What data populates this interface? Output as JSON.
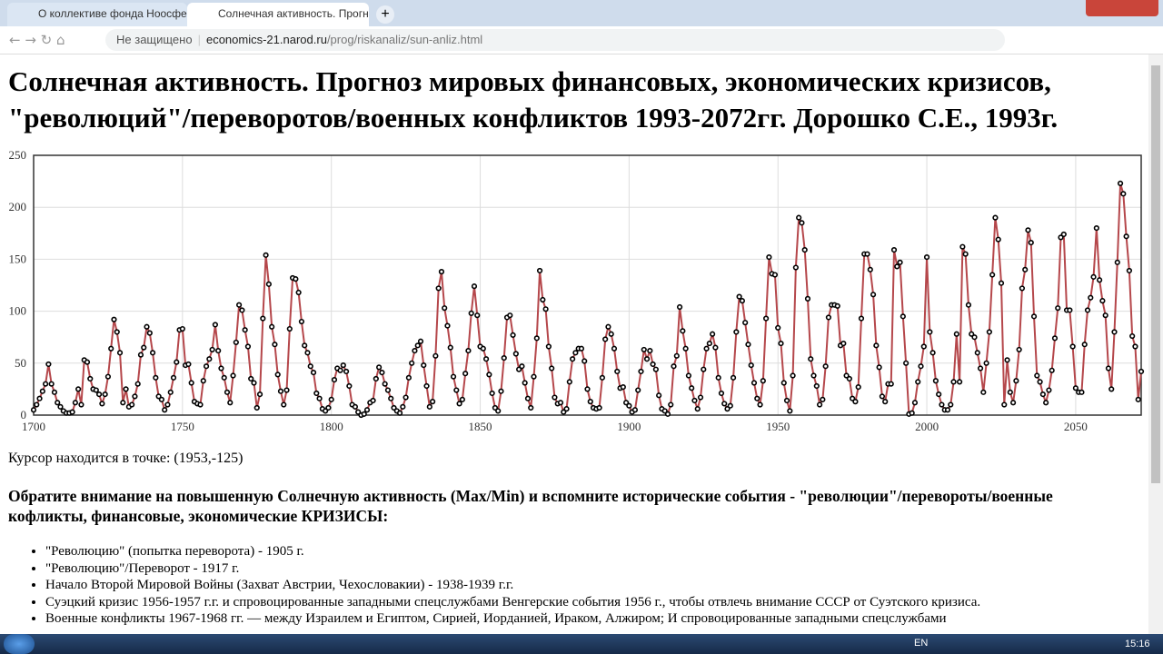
{
  "browser": {
    "tabs": [
      "О коллективе фонда Ноосфера",
      "Солнечная активность. Прогноз"
    ],
    "security": "Не защищено",
    "url_host": "economics-21.narod.ru",
    "url_path": "/prog/riskanaliz/sun-anliz.html"
  },
  "heading": [
    "Солнечная активность. Прогноз мировых финансовых, экономических кризисов,",
    "\"революций\"/переворотов/военных конфликтов 1993-2072гг. Дорошко С.Е., 1993г."
  ],
  "chart_data": {
    "type": "line",
    "color": "#b5474b",
    "grid": true,
    "xlim": [
      1700,
      2072
    ],
    "ylim": [
      0,
      250
    ],
    "xticks": [
      1700,
      1750,
      1800,
      1850,
      1900,
      1950,
      2000,
      2050
    ],
    "yticks": [
      0,
      50,
      100,
      150,
      200,
      250
    ],
    "x": [
      1700,
      1701,
      1702,
      1703,
      1704,
      1705,
      1706,
      1707,
      1708,
      1709,
      1710,
      1711,
      1712,
      1713,
      1714,
      1715,
      1716,
      1717,
      1718,
      1719,
      1720,
      1721,
      1722,
      1723,
      1724,
      1725,
      1726,
      1727,
      1728,
      1729,
      1730,
      1731,
      1732,
      1733,
      1734,
      1735,
      1736,
      1737,
      1738,
      1739,
      1740,
      1741,
      1742,
      1743,
      1744,
      1745,
      1746,
      1747,
      1748,
      1749,
      1750,
      1751,
      1752,
      1753,
      1754,
      1755,
      1756,
      1757,
      1758,
      1759,
      1760,
      1761,
      1762,
      1763,
      1764,
      1765,
      1766,
      1767,
      1768,
      1769,
      1770,
      1771,
      1772,
      1773,
      1774,
      1775,
      1776,
      1777,
      1778,
      1779,
      1780,
      1781,
      1782,
      1783,
      1784,
      1785,
      1786,
      1787,
      1788,
      1789,
      1790,
      1791,
      1792,
      1793,
      1794,
      1795,
      1796,
      1797,
      1798,
      1799,
      1800,
      1801,
      1802,
      1803,
      1804,
      1805,
      1806,
      1807,
      1808,
      1809,
      1810,
      1811,
      1812,
      1813,
      1814,
      1815,
      1816,
      1817,
      1818,
      1819,
      1820,
      1821,
      1822,
      1823,
      1824,
      1825,
      1826,
      1827,
      1828,
      1829,
      1830,
      1831,
      1832,
      1833,
      1834,
      1835,
      1836,
      1837,
      1838,
      1839,
      1840,
      1841,
      1842,
      1843,
      1844,
      1845,
      1846,
      1847,
      1848,
      1849,
      1850,
      1851,
      1852,
      1853,
      1854,
      1855,
      1856,
      1857,
      1858,
      1859,
      1860,
      1861,
      1862,
      1863,
      1864,
      1865,
      1866,
      1867,
      1868,
      1869,
      1870,
      1871,
      1872,
      1873,
      1874,
      1875,
      1876,
      1877,
      1878,
      1879,
      1880,
      1881,
      1882,
      1883,
      1884,
      1885,
      1886,
      1887,
      1888,
      1889,
      1890,
      1891,
      1892,
      1893,
      1894,
      1895,
      1896,
      1897,
      1898,
      1899,
      1900,
      1901,
      1902,
      1903,
      1904,
      1905,
      1906,
      1907,
      1908,
      1909,
      1910,
      1911,
      1912,
      1913,
      1914,
      1915,
      1916,
      1917,
      1918,
      1919,
      1920,
      1921,
      1922,
      1923,
      1924,
      1925,
      1926,
      1927,
      1928,
      1929,
      1930,
      1931,
      1932,
      1933,
      1934,
      1935,
      1936,
      1937,
      1938,
      1939,
      1940,
      1941,
      1942,
      1943,
      1944,
      1945,
      1946,
      1947,
      1948,
      1949,
      1950,
      1951,
      1952,
      1953,
      1954,
      1955,
      1956,
      1957,
      1958,
      1959,
      1960,
      1961,
      1962,
      1963,
      1964,
      1965,
      1966,
      1967,
      1968,
      1969,
      1970,
      1971,
      1972,
      1973,
      1974,
      1975,
      1976,
      1977,
      1978,
      1979,
      1980,
      1981,
      1982,
      1983,
      1984,
      1985,
      1986,
      1987,
      1988,
      1989,
      1990,
      1991,
      1992,
      1993,
      1994,
      1995,
      1996,
      1997,
      1998,
      1999,
      2000,
      2001,
      2002,
      2003,
      2004,
      2005,
      2006,
      2007,
      2008,
      2009,
      2010,
      2011,
      2012,
      2013,
      2014,
      2015,
      2016,
      2017,
      2018,
      2019,
      2020,
      2021,
      2022,
      2023,
      2024,
      2025,
      2026,
      2027,
      2028,
      2029,
      2030,
      2031,
      2032,
      2033,
      2034,
      2035,
      2036,
      2037,
      2038,
      2039,
      2040,
      2041,
      2042,
      2043,
      2044,
      2045,
      2046,
      2047,
      2048,
      2049,
      2050,
      2051,
      2052,
      2053,
      2054,
      2055,
      2056,
      2057,
      2058,
      2059,
      2060,
      2061,
      2062,
      2063,
      2064,
      2065,
      2066,
      2067,
      2068,
      2069,
      2070,
      2071,
      2072
    ],
    "values": [
      5,
      10,
      16,
      23,
      30,
      49,
      30,
      22,
      12,
      8,
      4,
      2,
      2,
      3,
      12,
      25,
      10,
      53,
      51,
      35,
      25,
      24,
      20,
      11,
      20,
      37,
      64,
      92,
      80,
      60,
      12,
      25,
      8,
      10,
      18,
      30,
      58,
      65,
      85,
      79,
      60,
      36,
      18,
      15,
      5,
      10,
      22,
      36,
      51,
      82,
      83,
      48,
      49,
      31,
      13,
      11,
      10,
      33,
      47,
      54,
      63,
      87,
      62,
      45,
      36,
      22,
      12,
      38,
      70,
      106,
      101,
      82,
      66,
      35,
      31,
      7,
      20,
      93,
      154,
      126,
      85,
      68,
      39,
      23,
      10,
      24,
      83,
      132,
      131,
      118,
      90,
      67,
      60,
      47,
      41,
      21,
      16,
      6,
      4,
      7,
      15,
      34,
      45,
      43,
      48,
      42,
      28,
      10,
      8,
      3,
      0,
      1,
      5,
      12,
      14,
      35,
      46,
      41,
      30,
      24,
      16,
      7,
      4,
      2,
      8,
      17,
      36,
      50,
      62,
      67,
      71,
      48,
      28,
      8,
      13,
      57,
      122,
      138,
      103,
      86,
      65,
      37,
      24,
      11,
      15,
      40,
      62,
      98,
      124,
      96,
      66,
      64,
      54,
      39,
      21,
      7,
      4,
      23,
      55,
      94,
      96,
      77,
      59,
      44,
      47,
      31,
      16,
      7,
      37,
      74,
      139,
      111,
      102,
      66,
      45,
      17,
      11,
      12,
      3,
      6,
      32,
      54,
      60,
      64,
      64,
      52,
      25,
      13,
      7,
      6,
      7,
      36,
      73,
      85,
      78,
      64,
      42,
      26,
      27,
      12,
      9,
      3,
      5,
      24,
      42,
      63,
      54,
      62,
      49,
      44,
      19,
      6,
      4,
      1,
      10,
      47,
      57,
      104,
      81,
      64,
      38,
      26,
      14,
      6,
      17,
      44,
      64,
      69,
      78,
      65,
      36,
      21,
      11,
      6,
      9,
      36,
      80,
      114,
      110,
      89,
      68,
      48,
      31,
      16,
      10,
      33,
      93,
      152,
      136,
      135,
      84,
      69,
      31,
      14,
      4,
      38,
      142,
      190,
      185,
      159,
      112,
      54,
      38,
      28,
      10,
      15,
      47,
      94,
      106,
      106,
      105,
      67,
      69,
      38,
      35,
      16,
      13,
      27,
      93,
      155,
      155,
      140,
      116,
      67,
      46,
      18,
      13,
      30,
      30,
      159,
      143,
      147,
      95,
      50,
      1,
      2,
      12,
      32,
      47,
      66,
      152,
      80,
      60,
      33,
      20,
      10,
      5,
      5,
      10,
      32,
      78,
      32,
      162,
      155,
      106,
      78,
      75,
      60,
      45,
      22,
      50,
      80,
      135,
      190,
      169,
      127,
      10,
      53,
      22,
      12,
      33,
      63,
      122,
      140,
      178,
      166,
      95,
      38,
      32,
      20,
      12,
      24,
      43,
      74,
      103,
      171,
      174,
      101,
      101,
      66,
      26,
      22,
      22,
      68,
      101,
      113,
      133,
      180,
      130,
      110,
      96,
      45,
      25,
      80,
      147,
      223,
      213,
      172,
      139,
      76,
      66,
      15,
      42
    ]
  },
  "cursor": "Курсор находится в точке: (1953,-125)",
  "notice": "Обратите внимание на повышенную Солнечную активность (Max/Min) и вспомните исторические события - \"революции\"/перевороты/военные кофликты, финансовые, экономические КРИЗИСЫ:",
  "events": [
    "\"Революцию\" (попытка переворота) - 1905 г.",
    "\"Революцию\"/Переворот - 1917 г.",
    "Начало Второй Мировой Войны (Захват Австрии, Чехословакии) - 1938-1939 г.г.",
    "Суэцкий кризис 1956-1957 г.г. и спровоцированные западными спецслужбами Венгерские события 1956 г., чтобы отвлечь внимание СССР от Суэтского кризиса.",
    "Военные конфликты 1967-1968 гг. — между Израилем и Египтом, Сирией, Иорданией, Ираком, Алжиром; И спровоцированные западными спецслужбами"
  ],
  "taskbar": {
    "lang": "EN",
    "time": "15:16"
  }
}
